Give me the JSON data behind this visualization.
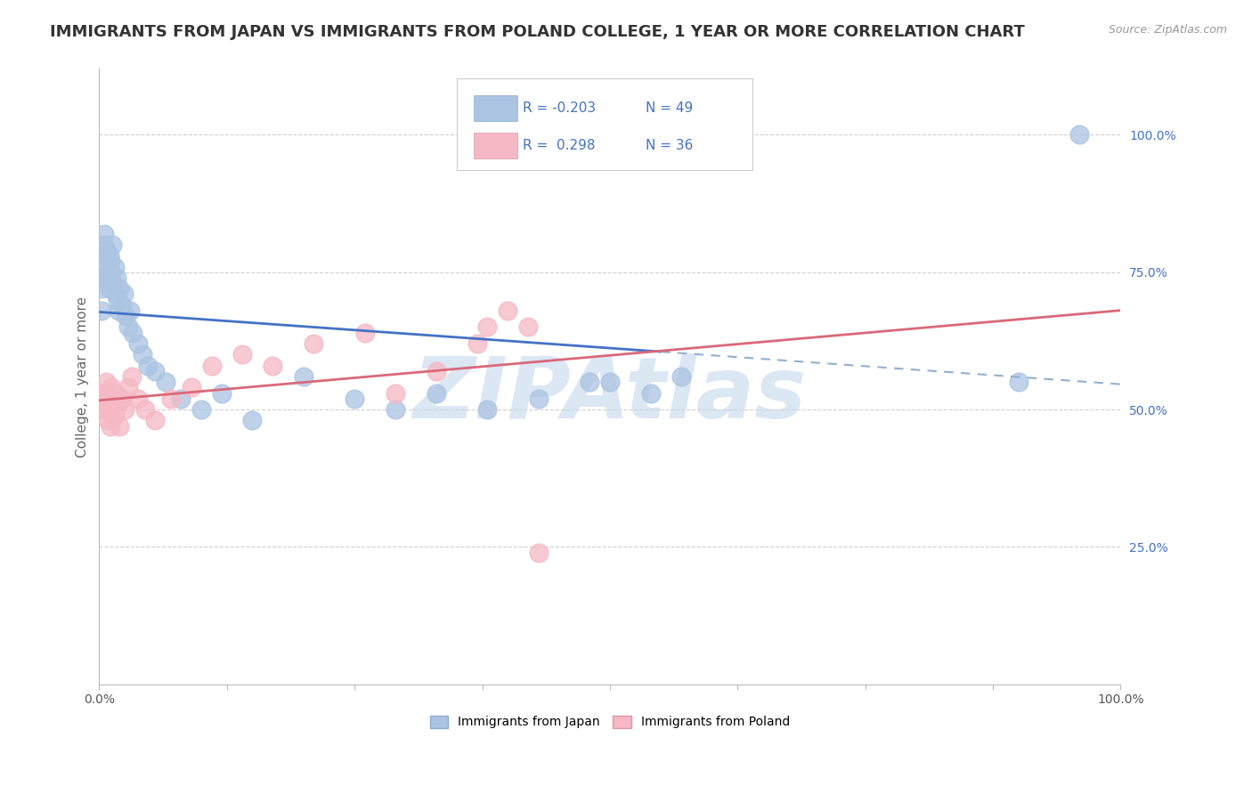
{
  "title": "IMMIGRANTS FROM JAPAN VS IMMIGRANTS FROM POLAND COLLEGE, 1 YEAR OR MORE CORRELATION CHART",
  "source_text": "Source: ZipAtlas.com",
  "ylabel": "College, 1 year or more",
  "watermark": "ZIPAtlas",
  "legend_japan": "Immigrants from Japan",
  "legend_poland": "Immigrants from Poland",
  "R_japan": -0.203,
  "N_japan": 49,
  "R_poland": 0.298,
  "N_poland": 36,
  "japan_color": "#aac4e2",
  "poland_color": "#f5b8c4",
  "japan_line_color": "#4472c4",
  "poland_line_color": "#d9697a",
  "japan_x": [
    0.002,
    0.003,
    0.004,
    0.005,
    0.005,
    0.006,
    0.007,
    0.007,
    0.008,
    0.009,
    0.01,
    0.01,
    0.011,
    0.012,
    0.013,
    0.014,
    0.015,
    0.016,
    0.017,
    0.018,
    0.019,
    0.02,
    0.022,
    0.024,
    0.026,
    0.028,
    0.03,
    0.033,
    0.038,
    0.042,
    0.048,
    0.055,
    0.065,
    0.08,
    0.1,
    0.12,
    0.15,
    0.2,
    0.25,
    0.29,
    0.33,
    0.38,
    0.43,
    0.48,
    0.5,
    0.54,
    0.57,
    0.9,
    0.96
  ],
  "japan_y": [
    0.68,
    0.72,
    0.78,
    0.82,
    0.8,
    0.76,
    0.74,
    0.79,
    0.75,
    0.73,
    0.78,
    0.72,
    0.77,
    0.75,
    0.8,
    0.73,
    0.76,
    0.71,
    0.74,
    0.7,
    0.68,
    0.72,
    0.69,
    0.71,
    0.67,
    0.65,
    0.68,
    0.64,
    0.62,
    0.6,
    0.58,
    0.57,
    0.55,
    0.52,
    0.5,
    0.53,
    0.48,
    0.56,
    0.52,
    0.5,
    0.53,
    0.5,
    0.52,
    0.55,
    0.55,
    0.53,
    0.56,
    0.55,
    1.0
  ],
  "poland_x": [
    0.003,
    0.005,
    0.006,
    0.007,
    0.008,
    0.009,
    0.01,
    0.011,
    0.012,
    0.013,
    0.014,
    0.015,
    0.016,
    0.018,
    0.02,
    0.022,
    0.025,
    0.028,
    0.032,
    0.038,
    0.045,
    0.055,
    0.07,
    0.09,
    0.11,
    0.14,
    0.17,
    0.21,
    0.26,
    0.29,
    0.33,
    0.37,
    0.38,
    0.4,
    0.42,
    0.43
  ],
  "poland_y": [
    0.52,
    0.53,
    0.5,
    0.55,
    0.48,
    0.52,
    0.5,
    0.47,
    0.54,
    0.5,
    0.52,
    0.49,
    0.53,
    0.51,
    0.47,
    0.52,
    0.5,
    0.54,
    0.56,
    0.52,
    0.5,
    0.48,
    0.52,
    0.54,
    0.58,
    0.6,
    0.58,
    0.62,
    0.64,
    0.53,
    0.57,
    0.62,
    0.65,
    0.68,
    0.65,
    0.24
  ],
  "xlim": [
    0.0,
    1.0
  ],
  "ylim": [
    0.0,
    1.12
  ],
  "right_yticks": [
    0.25,
    0.5,
    0.75,
    1.0
  ],
  "right_yticklabels": [
    "25.0%",
    "50.0%",
    "75.0%",
    "100.0%"
  ],
  "xticklabels_pos": [
    0.0,
    1.0
  ],
  "xticklabels": [
    "0.0%",
    "100.0%"
  ],
  "grid_color": "#d0d0d0",
  "background_color": "#ffffff",
  "title_color": "#333333",
  "title_fontsize": 13,
  "axis_label_fontsize": 11,
  "tick_fontsize": 10,
  "watermark_color": "#c5d8ed",
  "watermark_fontsize": 70,
  "japan_dashed_line_color": "#90b0d0"
}
